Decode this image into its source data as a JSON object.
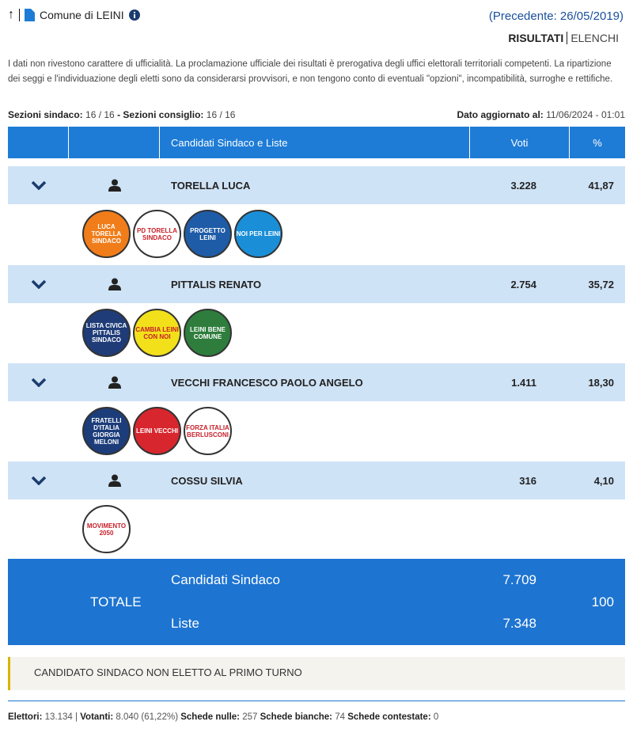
{
  "header": {
    "title": "Comune di LEINI",
    "previous": "(Precedente: 26/05/2019)",
    "tabs": [
      "RISULTATI",
      "ELENCHI"
    ]
  },
  "disclaimer": "I dati non rivestono carattere di ufficialità. La proclamazione ufficiale dei risultati è prerogativa degli uffici elettorali territoriali competenti. La ripartizione dei seggi e l'individuazione degli eletti sono da considerarsi provvisori, e non tengono conto di eventuali \"opzioni\", incompatibilità, surroghe e rettifiche.",
  "sezioni": {
    "sindaco_label": "Sezioni sindaco:",
    "sindaco": "16 / 16",
    "sep": " - ",
    "consiglio_label": "Sezioni consiglio:",
    "consiglio": "16 / 16"
  },
  "updated": {
    "label": "Dato aggiornato al:",
    "value": "11/06/2024 - 01:01"
  },
  "table": {
    "columns": [
      "Candidati Sindaco e Liste",
      "Voti",
      "%"
    ],
    "candidates": [
      {
        "name": "TORELLA LUCA",
        "votes": "3.228",
        "pct": "41,87",
        "lists": [
          {
            "text": "LUCA TORELLA SINDACO",
            "color": "#f07d1a"
          },
          {
            "text": "PD TORELLA SINDACO",
            "color": "#ffffff"
          },
          {
            "text": "PROGETTO LEINI",
            "color": "#1f5ca8"
          },
          {
            "text": "NOI PER LEINI",
            "color": "#1a8fd8"
          }
        ]
      },
      {
        "name": "PITTALIS RENATO",
        "votes": "2.754",
        "pct": "35,72",
        "lists": [
          {
            "text": "LISTA CIVICA PITTALIS SINDACO",
            "color": "#1f3c78"
          },
          {
            "text": "CAMBIA LEINI CON NOI",
            "color": "#f2e11a"
          },
          {
            "text": "LEINI BENE COMUNE",
            "color": "#2e7d3c"
          }
        ]
      },
      {
        "name": "VECCHI FRANCESCO PAOLO ANGELO",
        "votes": "1.411",
        "pct": "18,30",
        "lists": [
          {
            "text": "FRATELLI D'ITALIA GIORGIA MELONI",
            "color": "#1c3d7a"
          },
          {
            "text": "LEINI VECCHI",
            "color": "#d8262e"
          },
          {
            "text": "FORZA ITALIA BERLUSCONI",
            "color": "#ffffff"
          }
        ]
      },
      {
        "name": "COSSU SILVIA",
        "votes": "316",
        "pct": "4,10",
        "lists": [
          {
            "text": "MOVIMENTO 2050",
            "color": "#ffffff"
          }
        ]
      }
    ]
  },
  "totale": {
    "label": "TOTALE",
    "candidati_label": "Candidati Sindaco",
    "candidati": "7.709",
    "liste_label": "Liste",
    "liste": "7.348",
    "pct": "100"
  },
  "notice": "CANDIDATO SINDACO NON ELETTO AL PRIMO TURNO",
  "footer": {
    "elettori_label": "Elettori:",
    "elettori": "13.134",
    "votanti_label": "Votanti:",
    "votanti": "8.040 (61,22%)",
    "nulle_label": "Schede nulle:",
    "nulle": "257",
    "bianche_label": "Schede bianche:",
    "bianche": "74",
    "contestate_label": "Schede contestate:",
    "contestate": "0"
  }
}
